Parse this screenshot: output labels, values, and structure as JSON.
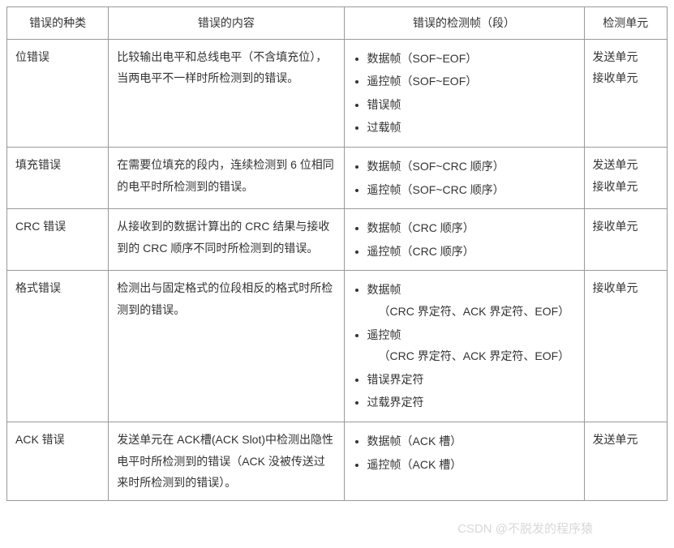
{
  "headers": {
    "type": "错误的种类",
    "content": "错误的内容",
    "frame": "错误的检测帧（段）",
    "unit": "检测单元"
  },
  "rows": [
    {
      "type": "位错误",
      "content": "比较输出电平和总线电平（不含填充位），当两电平不一样时所检测到的错误。",
      "frames": [
        "数据帧（SOF~EOF）",
        "遥控帧（SOF~EOF）",
        "错误帧",
        "过载帧"
      ],
      "units": [
        "发送单元",
        "接收单元"
      ]
    },
    {
      "type": "填充错误",
      "content": "在需要位填充的段内，连续检测到 6 位相同的电平时所检测到的错误。",
      "frames": [
        "数据帧（SOF~CRC 顺序）",
        "遥控帧（SOF~CRC 顺序）"
      ],
      "units": [
        "发送单元",
        "接收单元"
      ]
    },
    {
      "type": "CRC 错误",
      "content": "从接收到的数据计算出的 CRC 结果与接收到的 CRC 顺序不同时所检测到的错误。",
      "frames": [
        "数据帧（CRC 顺序）",
        "遥控帧（CRC 顺序）"
      ],
      "units": [
        "接收单元"
      ]
    },
    {
      "type": "格式错误",
      "content": "检测出与固定格式的位段相反的格式时所检测到的错误。",
      "frames": [
        "数据帧",
        "_indent:（CRC 界定符、ACK 界定符、EOF）",
        "遥控帧",
        "_indent:（CRC 界定符、ACK 界定符、EOF）",
        "错误界定符",
        "过载界定符"
      ],
      "units": [
        "接收单元"
      ]
    },
    {
      "type": "ACK 错误",
      "content": "发送单元在 ACK槽(ACK Slot)中检测出隐性电平时所检测到的错误（ACK 没被传送过来时所检测到的错误）。",
      "frames": [
        "数据帧（ACK 槽）",
        "遥控帧（ACK 槽）"
      ],
      "units": [
        "发送单元"
      ]
    }
  ],
  "watermark": "CSDN @不脱发的程序猿"
}
